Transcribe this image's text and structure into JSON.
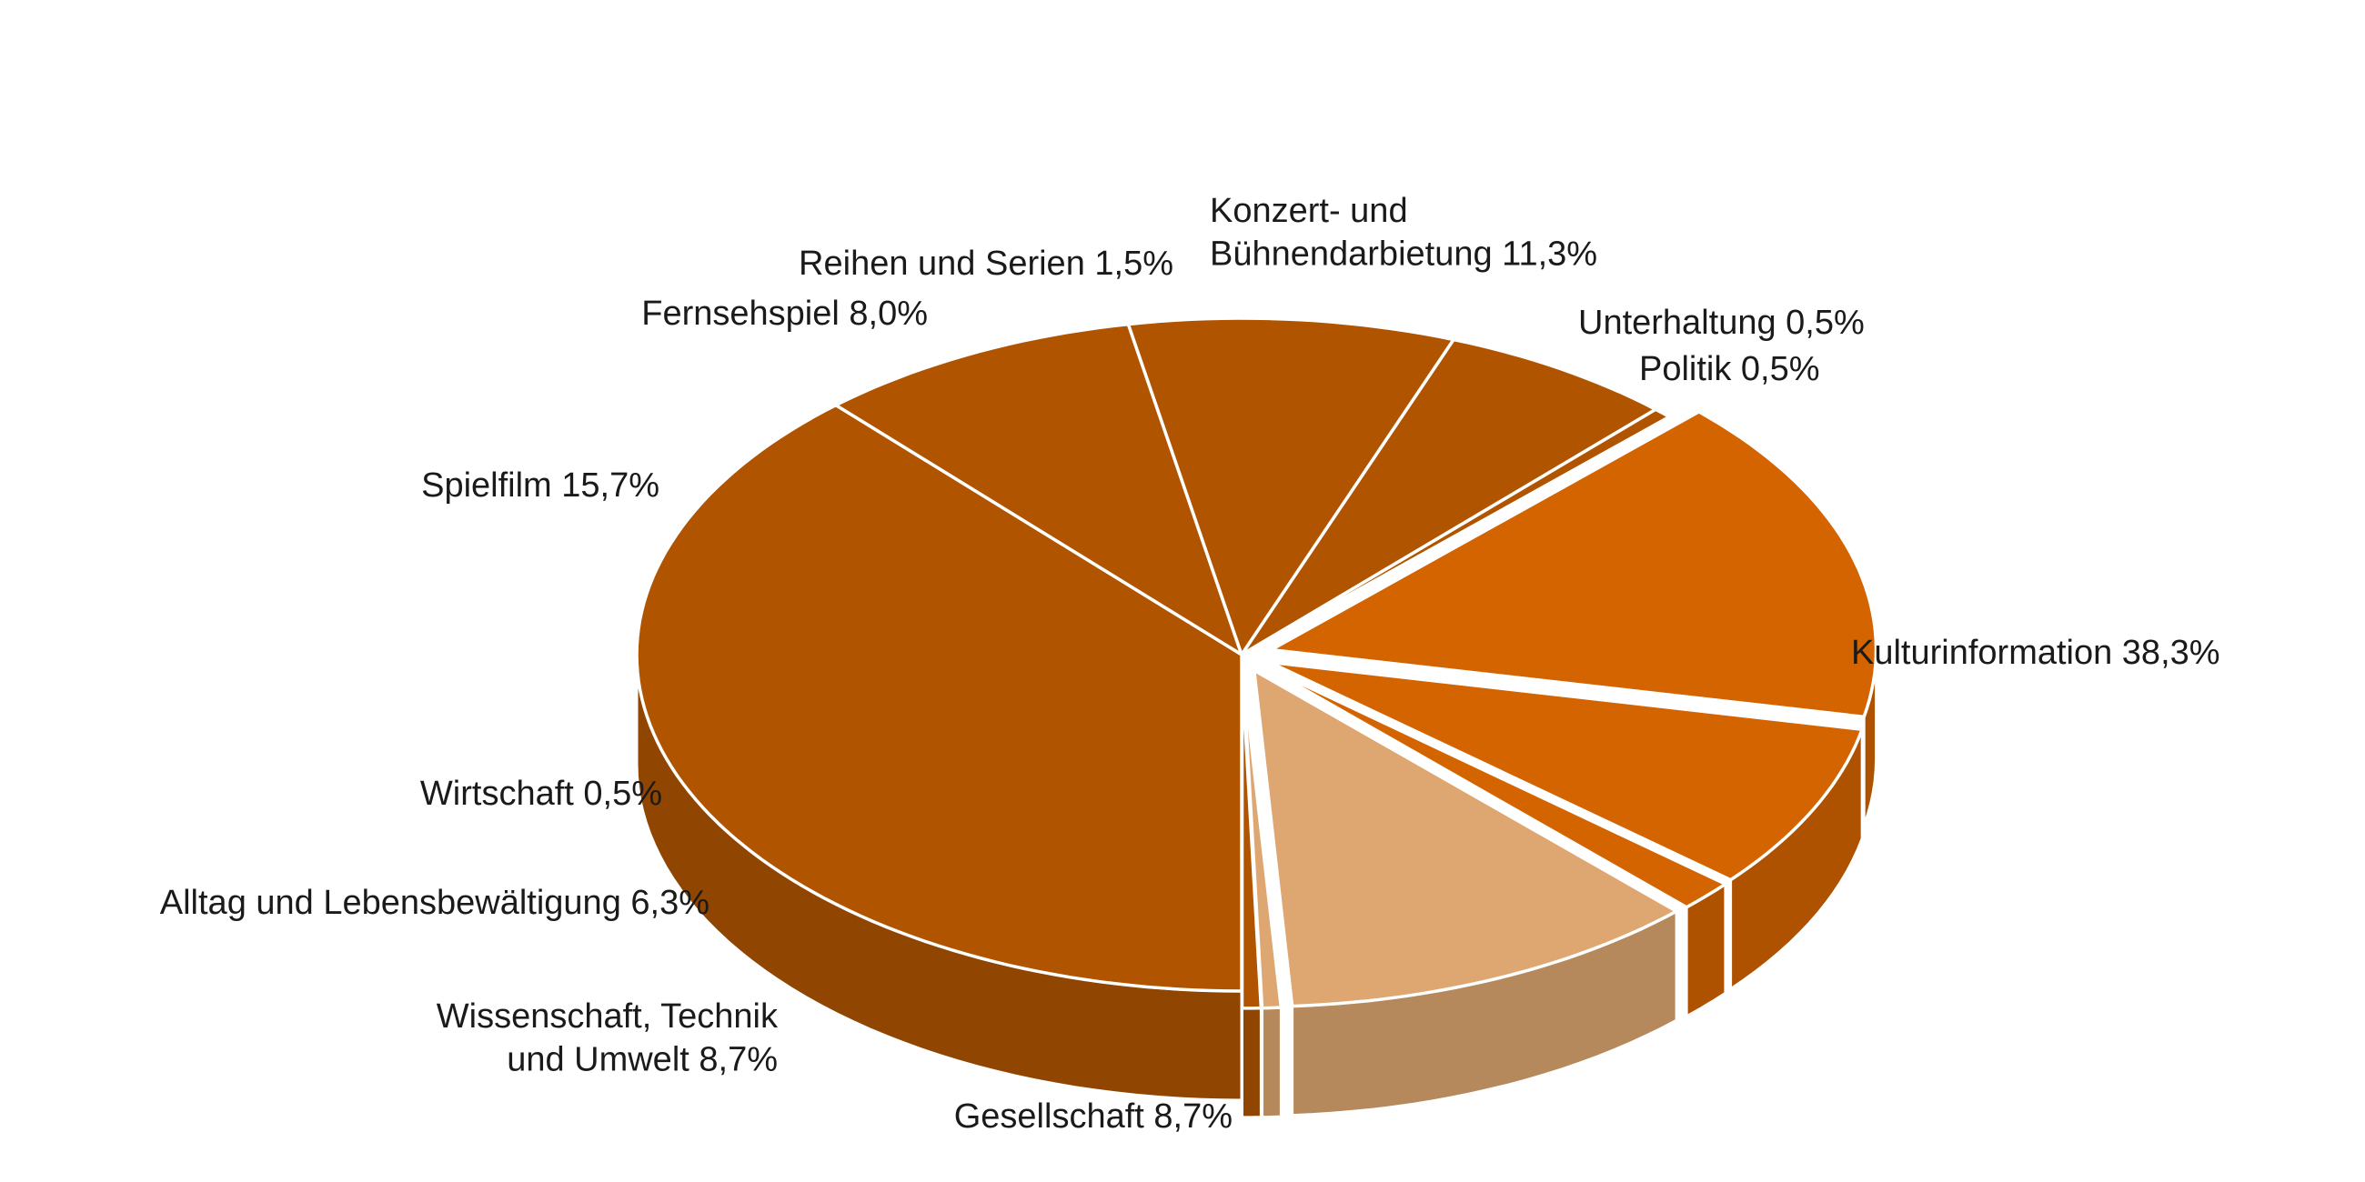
{
  "chart_data": {
    "type": "pie",
    "style": "3d-exploded",
    "title": "",
    "unit": "%",
    "slices": [
      {
        "label": "Kulturinformation",
        "value_text": "38,3%",
        "value": 38.3,
        "color": "#B05400",
        "exploded": false
      },
      {
        "label": "Gesellschaft",
        "value_text": "8,7%",
        "value": 8.7,
        "color": "#B05400",
        "exploded": false
      },
      {
        "label": "Wissenschaft, Technik und Umwelt",
        "label_lines": [
          "Wissenschaft, Technik",
          "und Umwelt"
        ],
        "value_text": "8,7%",
        "value": 8.7,
        "color": "#B05400",
        "exploded": false
      },
      {
        "label": "Alltag und Lebensbewältigung",
        "value_text": "6,3%",
        "value": 6.3,
        "color": "#B05400",
        "exploded": false
      },
      {
        "label": "Wirtschaft",
        "value_text": "0,5%",
        "value": 0.5,
        "color": "#B05400",
        "exploded": false
      },
      {
        "label": "Spielfilm",
        "value_text": "15,7%",
        "value": 15.7,
        "color": "#D46400",
        "exploded": true
      },
      {
        "label": "Fernsehspiel",
        "value_text": "8,0%",
        "value": 8.0,
        "color": "#D46400",
        "exploded": true
      },
      {
        "label": "Reihen und Serien",
        "value_text": "1,5%",
        "value": 1.5,
        "color": "#D46400",
        "exploded": true
      },
      {
        "label": "Konzert- und Bühnendarbietung",
        "label_lines": [
          "Konzert- und",
          "Bühnendarbietung"
        ],
        "value_text": "11,3%",
        "value": 11.3,
        "color": "#DEA772",
        "exploded": true
      },
      {
        "label": "Unterhaltung",
        "value_text": "0,5%",
        "value": 0.5,
        "color": "#DEA772",
        "exploded": true
      },
      {
        "label": "Politik",
        "value_text": "0,5%",
        "value": 0.5,
        "color": "#B05400",
        "exploded": true
      }
    ]
  }
}
